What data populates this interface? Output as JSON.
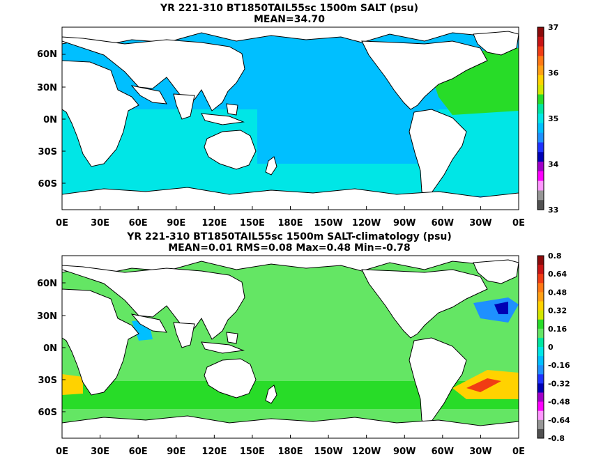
{
  "panels": [
    {
      "title_line1": "YR 221-310 BT1850TAIL55sc 1500m SALT (psu)",
      "title_line2": "MEAN=34.70",
      "lat_labels": [
        "60N",
        "30N",
        "0N",
        "30S",
        "60S"
      ],
      "lon_labels": [
        "0E",
        "30E",
        "60E",
        "90E",
        "120E",
        "150E",
        "180E",
        "150W",
        "120W",
        "90W",
        "60W",
        "30W",
        "0E"
      ],
      "colorbar": {
        "labels": [
          "37",
          "36",
          "35",
          "34",
          "33"
        ],
        "colors": [
          "#8c0a0a",
          "#c81414",
          "#f03c14",
          "#ff7814",
          "#ffa014",
          "#ffd200",
          "#d2e600",
          "#28dc28",
          "#00e6a0",
          "#00e6e6",
          "#00bfff",
          "#1e90ff",
          "#1e32ff",
          "#0000b4",
          "#a000c8",
          "#ff00ff",
          "#ff96ff",
          "#969696",
          "#505050"
        ]
      },
      "field": {
        "ocean_main": "#00bfff",
        "indian_ocean": "#00e6e6",
        "atlantic_south": "#00e6e6",
        "north_atlantic": "#28dc28",
        "southern_ocean": "#00e6e6",
        "mediterranean": "#c81414"
      }
    },
    {
      "title_line1": "YR 221-310 BT1850TAIL55sc 1500m SALT-climatology (psu)",
      "title_line2": "MEAN=0.01   RMS=0.08   Max=0.48   Min=-0.78",
      "lat_labels": [
        "60N",
        "30N",
        "0N",
        "30S",
        "60S"
      ],
      "lon_labels": [
        "0E",
        "30E",
        "60E",
        "90E",
        "120E",
        "150E",
        "180E",
        "150W",
        "120W",
        "90W",
        "60W",
        "30W",
        "0E"
      ],
      "colorbar": {
        "labels": [
          "0.8",
          "0.64",
          "0.48",
          "0.32",
          "0.16",
          "0",
          "-0.16",
          "-0.32",
          "-0.48",
          "-0.64",
          "-0.8"
        ],
        "colors": [
          "#8c0a0a",
          "#c81414",
          "#f03c14",
          "#ff7814",
          "#ffa014",
          "#ffd200",
          "#d2e600",
          "#28dc28",
          "#64e664",
          "#00e6a0",
          "#00e6e6",
          "#00bfff",
          "#1e90ff",
          "#1e32ff",
          "#0000b4",
          "#a000c8",
          "#ff00ff",
          "#ff96ff",
          "#969696",
          "#505050"
        ]
      },
      "field": {
        "ocean_main": "#64e664",
        "southern_band": "#28dc28",
        "atlantic_south_anomaly": "#ffd200",
        "atlantic_south_anomaly_core": "#f03c14",
        "north_atlantic_negative": "#1e90ff",
        "north_atlantic_negative_core": "#0000b4",
        "agulhas_anomaly": "#ffd200",
        "arabian_sea": "#00bfff"
      }
    }
  ]
}
